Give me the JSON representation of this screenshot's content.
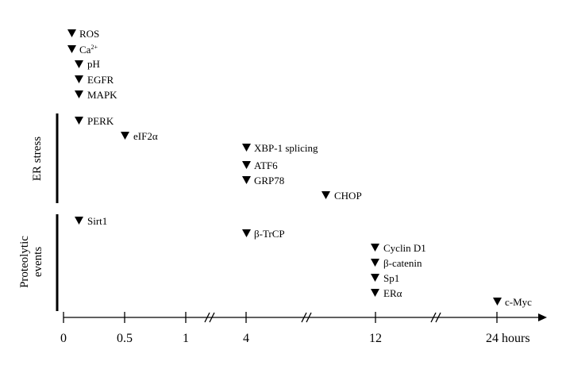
{
  "events_top": [
    {
      "label": "ROS"
    },
    {
      "label": "Ca",
      "sup": "2+"
    },
    {
      "label": "pH"
    },
    {
      "label": "EGFR"
    },
    {
      "label": "MAPK"
    }
  ],
  "er_stress": {
    "title": "ER stress",
    "events": [
      {
        "label": "PERK"
      },
      {
        "label": "eIF2α"
      },
      {
        "label": "XBP-1 splicing"
      },
      {
        "label": "ATF6"
      },
      {
        "label": "GRP78"
      },
      {
        "label": "CHOP"
      }
    ]
  },
  "proteolytic": {
    "title_line1": "Proteolytic",
    "title_line2": "events",
    "events": [
      {
        "label": "Sirt1"
      },
      {
        "label": "β-TrCP"
      },
      {
        "label": "Cyclin D1"
      },
      {
        "label": "β-catenin"
      },
      {
        "label": "Sp1"
      },
      {
        "label": "ERα"
      },
      {
        "label": "c-Myc"
      }
    ]
  },
  "axis": {
    "ticks": [
      "0",
      "0.5",
      "1",
      "4",
      "12",
      "24 hours"
    ]
  }
}
